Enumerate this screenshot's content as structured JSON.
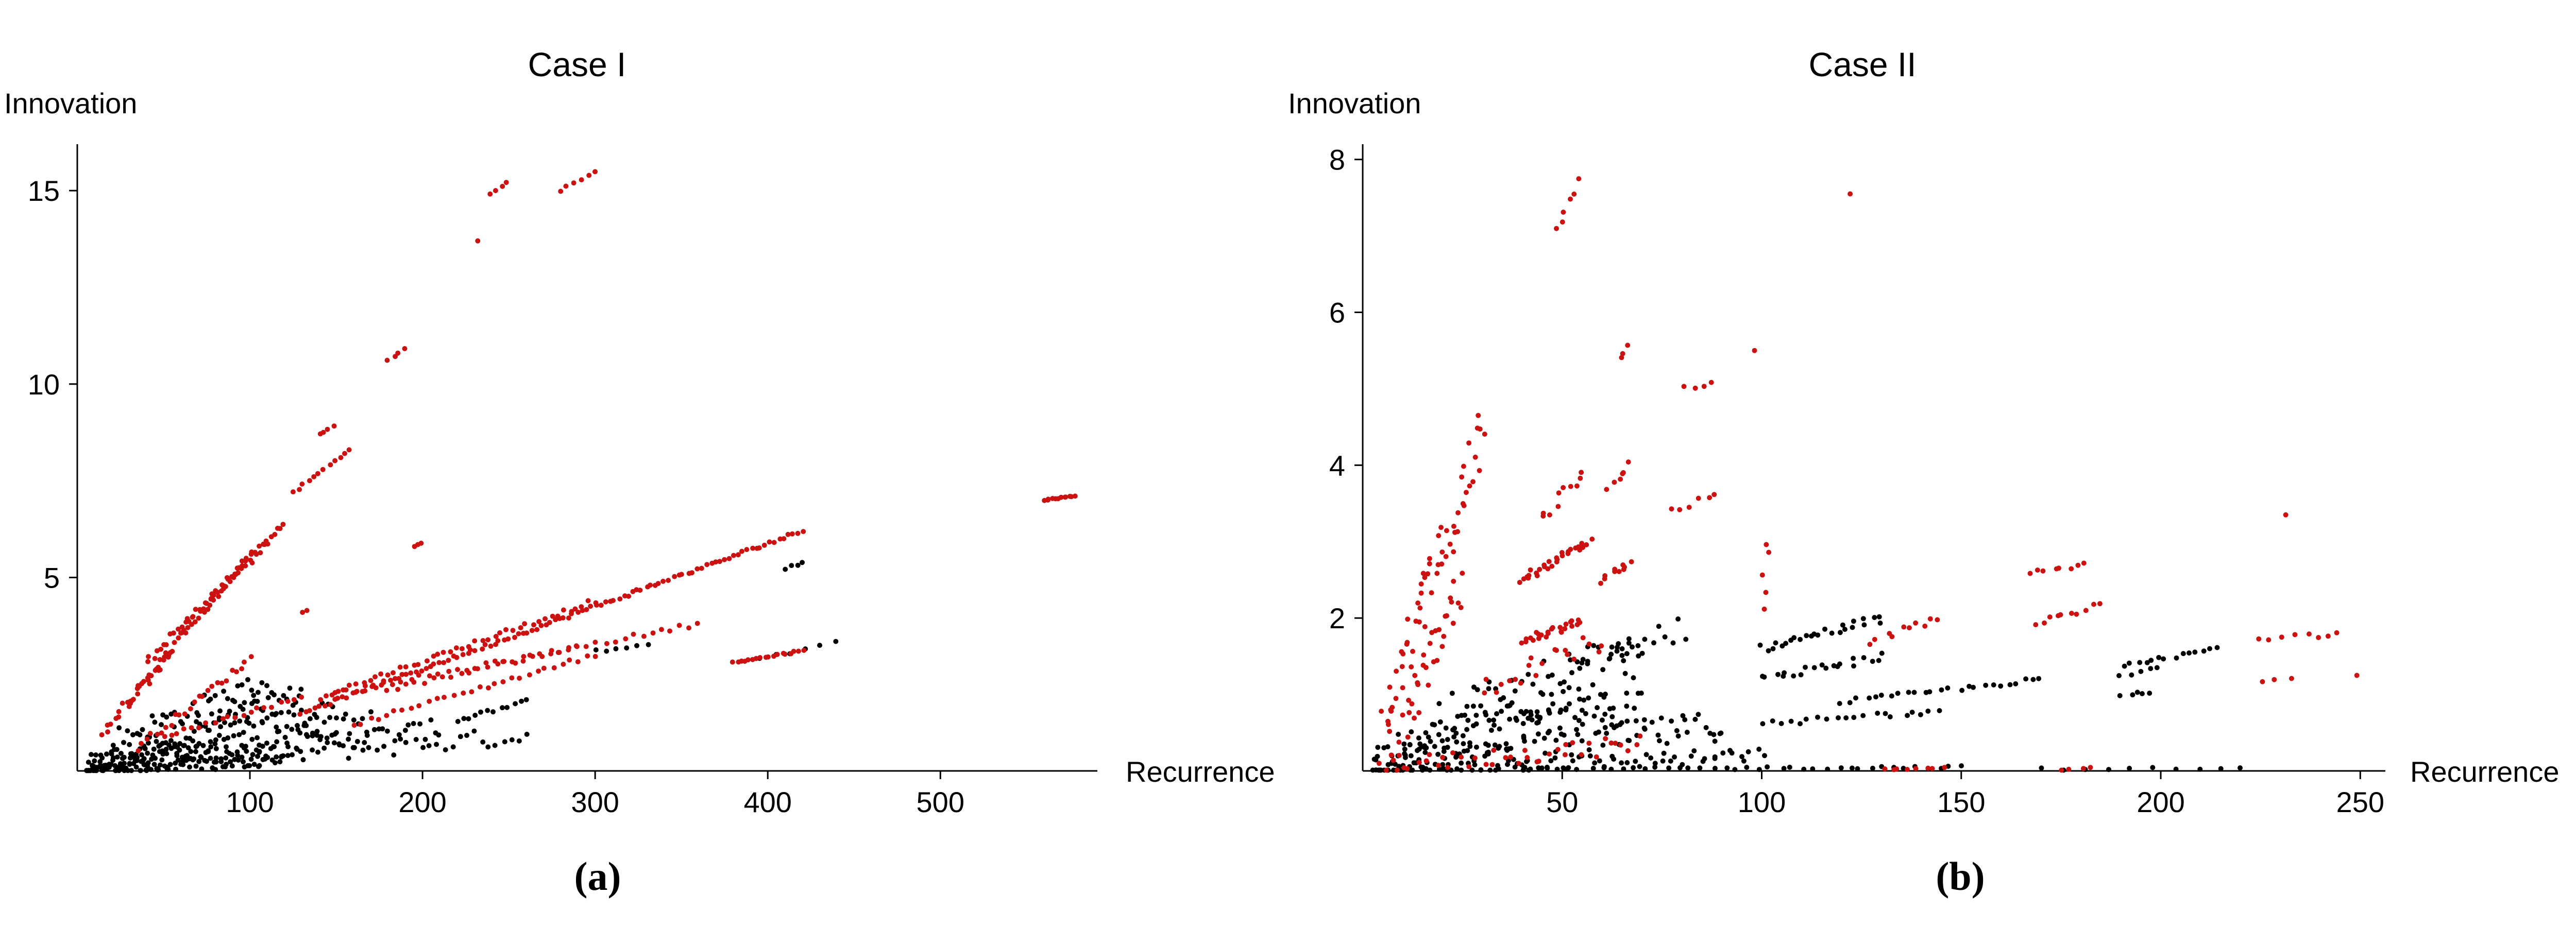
{
  "chart_data": [
    {
      "type": "scatter",
      "panel_label": "(a)",
      "title": "Case I",
      "xlabel": "Recurrence",
      "ylabel": "Innovation",
      "xlim": [
        0,
        582
      ],
      "ylim": [
        0,
        16.2
      ],
      "xticks": [
        100,
        200,
        300,
        400,
        500
      ],
      "yticks": [
        5,
        10,
        15
      ],
      "grid": false,
      "series": [
        {
          "color": "#000000",
          "streaks": [
            {
              "x0": 6,
              "y0": 0.1,
              "x1": 130,
              "y1": 2.0,
              "n": 70,
              "w": 0.3
            },
            {
              "x0": 6,
              "y0": 0.05,
              "x1": 150,
              "y1": 1.6,
              "n": 70,
              "w": 0.3
            },
            {
              "x0": 6,
              "y0": 0.05,
              "x1": 170,
              "y1": 1.3,
              "n": 70,
              "w": 0.3
            },
            {
              "x0": 6,
              "y0": 0.04,
              "x1": 210,
              "y1": 1.1,
              "n": 70,
              "w": 0.25
            },
            {
              "x0": 6,
              "y0": 0.03,
              "x1": 260,
              "y1": 0.9,
              "n": 60,
              "w": 0.25
            },
            {
              "x0": 6,
              "y0": 0.02,
              "x1": 120,
              "y1": 0.3,
              "n": 60,
              "w": 0.15
            },
            {
              "x0": 20,
              "y0": 0.8,
              "x1": 110,
              "y1": 2.3,
              "n": 40,
              "w": 0.3
            },
            {
              "x0": 220,
              "y0": 1.3,
              "x1": 260,
              "y1": 1.8,
              "n": 12,
              "w": 0.05
            },
            {
              "x0": 300,
              "y0": 3.1,
              "x1": 330,
              "y1": 3.3,
              "n": 6,
              "w": 0.05
            },
            {
              "x0": 410,
              "y0": 5.2,
              "x1": 420,
              "y1": 5.4,
              "n": 4,
              "w": 0.05
            },
            {
              "x0": 395,
              "y0": 2.9,
              "x1": 440,
              "y1": 3.3,
              "n": 6,
              "w": 0.05
            }
          ]
        },
        {
          "color": "#cc1111",
          "streaks": [
            {
              "x0": 40,
              "y0": 2.8,
              "x1": 120,
              "y1": 6.4,
              "n": 40,
              "w": 0.1
            },
            {
              "x0": 30,
              "y0": 1.8,
              "x1": 100,
              "y1": 5.6,
              "n": 35,
              "w": 0.1
            },
            {
              "x0": 60,
              "y0": 3.6,
              "x1": 110,
              "y1": 5.9,
              "n": 22,
              "w": 0.1
            },
            {
              "x0": 15,
              "y0": 1.0,
              "x1": 55,
              "y1": 3.1,
              "n": 25,
              "w": 0.15
            },
            {
              "x0": 35,
              "y0": 0.6,
              "x1": 100,
              "y1": 2.9,
              "n": 25,
              "w": 0.1
            },
            {
              "x0": 50,
              "y0": 0.9,
              "x1": 130,
              "y1": 1.9,
              "n": 20,
              "w": 0.05
            },
            {
              "x0": 130,
              "y0": 1.5,
              "x1": 420,
              "y1": 6.2,
              "n": 110,
              "w": 0.05
            },
            {
              "x0": 140,
              "y0": 1.9,
              "x1": 300,
              "y1": 4.4,
              "n": 45,
              "w": 0.06
            },
            {
              "x0": 150,
              "y0": 2.0,
              "x1": 360,
              "y1": 3.8,
              "n": 40,
              "w": 0.06
            },
            {
              "x0": 160,
              "y0": 1.2,
              "x1": 300,
              "y1": 3.0,
              "n": 30,
              "w": 0.06
            },
            {
              "x0": 180,
              "y0": 2.1,
              "x1": 290,
              "y1": 3.2,
              "n": 22,
              "w": 0.05
            },
            {
              "x0": 380,
              "y0": 2.8,
              "x1": 420,
              "y1": 3.1,
              "n": 18,
              "w": 0.03
            },
            {
              "x0": 560,
              "y0": 7.0,
              "x1": 578,
              "y1": 7.1,
              "n": 12,
              "w": 0.02
            },
            {
              "x0": 125,
              "y0": 7.2,
              "x1": 158,
              "y1": 8.3,
              "n": 12,
              "w": 0.03
            },
            {
              "x0": 140,
              "y0": 8.7,
              "x1": 148,
              "y1": 8.9,
              "n": 4,
              "w": 0.02
            },
            {
              "x0": 180,
              "y0": 10.6,
              "x1": 190,
              "y1": 10.9,
              "n": 4,
              "w": 0.02
            },
            {
              "x0": 240,
              "y0": 14.9,
              "x1": 248,
              "y1": 15.2,
              "n": 4,
              "w": 0.02
            },
            {
              "x0": 280,
              "y0": 15.0,
              "x1": 300,
              "y1": 15.5,
              "n": 6,
              "w": 0.02
            },
            {
              "x0": 195,
              "y0": 5.8,
              "x1": 200,
              "y1": 5.9,
              "n": 3,
              "w": 0.02
            },
            {
              "x0": 130,
              "y0": 4.1,
              "x1": 133,
              "y1": 4.15,
              "n": 2,
              "w": 0.02
            },
            {
              "x0": 232,
              "y0": 13.7,
              "x1": 232,
              "y1": 13.7,
              "n": 1,
              "w": 0.0
            }
          ]
        }
      ]
    },
    {
      "type": "scatter",
      "panel_label": "(b)",
      "title": "Case II",
      "xlabel": "Recurrence",
      "ylabel": "Innovation",
      "xlim": [
        0,
        255
      ],
      "ylim": [
        0,
        8.2
      ],
      "xticks": [
        50,
        100,
        150,
        200,
        250
      ],
      "yticks": [
        2,
        4,
        6,
        8
      ],
      "grid": false,
      "series": [
        {
          "color": "#000000",
          "streaks": [
            {
              "x0": 3,
              "y0": 0.05,
              "x1": 70,
              "y1": 1.5,
              "n": 90,
              "w": 0.3
            },
            {
              "x0": 3,
              "y0": 0.05,
              "x1": 70,
              "y1": 0.9,
              "n": 90,
              "w": 0.25
            },
            {
              "x0": 3,
              "y0": 0.02,
              "x1": 90,
              "y1": 0.6,
              "n": 90,
              "w": 0.2
            },
            {
              "x0": 3,
              "y0": 0.01,
              "x1": 100,
              "y1": 0.2,
              "n": 70,
              "w": 0.1
            },
            {
              "x0": 20,
              "y0": 0.8,
              "x1": 80,
              "y1": 1.9,
              "n": 40,
              "w": 0.2
            },
            {
              "x0": 100,
              "y0": 1.6,
              "x1": 130,
              "y1": 2.0,
              "n": 25,
              "w": 0.05
            },
            {
              "x0": 100,
              "y0": 1.2,
              "x1": 130,
              "y1": 1.5,
              "n": 20,
              "w": 0.05
            },
            {
              "x0": 120,
              "y0": 0.9,
              "x1": 170,
              "y1": 1.2,
              "n": 25,
              "w": 0.03
            },
            {
              "x0": 100,
              "y0": 0.6,
              "x1": 145,
              "y1": 0.8,
              "n": 20,
              "w": 0.05
            },
            {
              "x0": 190,
              "y0": 1.4,
              "x1": 215,
              "y1": 1.6,
              "n": 14,
              "w": 0.03
            },
            {
              "x0": 190,
              "y0": 1.25,
              "x1": 200,
              "y1": 1.35,
              "n": 5,
              "w": 0.02
            },
            {
              "x0": 190,
              "y0": 1.0,
              "x1": 198,
              "y1": 1.02,
              "n": 5,
              "w": 0.02
            },
            {
              "x0": 40,
              "y0": 0.02,
              "x1": 150,
              "y1": 0.05,
              "n": 40,
              "w": 0.02
            },
            {
              "x0": 170,
              "y0": 0.02,
              "x1": 220,
              "y1": 0.03,
              "n": 10,
              "w": 0.02
            }
          ]
        },
        {
          "color": "#cc1111",
          "streaks": [
            {
              "x0": 5,
              "y0": 0.6,
              "x1": 30,
              "y1": 4.4,
              "n": 60,
              "w": 0.35
            },
            {
              "x0": 8,
              "y0": 0.3,
              "x1": 25,
              "y1": 2.4,
              "n": 35,
              "w": 0.3
            },
            {
              "x0": 40,
              "y0": 2.5,
              "x1": 57,
              "y1": 3.0,
              "n": 30,
              "w": 0.05
            },
            {
              "x0": 40,
              "y0": 1.7,
              "x1": 55,
              "y1": 1.95,
              "n": 25,
              "w": 0.05
            },
            {
              "x0": 60,
              "y0": 2.5,
              "x1": 67,
              "y1": 2.7,
              "n": 10,
              "w": 0.05
            },
            {
              "x0": 62,
              "y0": 3.7,
              "x1": 67,
              "y1": 4.0,
              "n": 6,
              "w": 0.05
            },
            {
              "x0": 45,
              "y0": 3.3,
              "x1": 55,
              "y1": 3.9,
              "n": 10,
              "w": 0.1
            },
            {
              "x0": 30,
              "y0": 1.1,
              "x1": 60,
              "y1": 1.7,
              "n": 20,
              "w": 0.15
            },
            {
              "x0": 78,
              "y0": 3.4,
              "x1": 88,
              "y1": 3.6,
              "n": 6,
              "w": 0.05
            },
            {
              "x0": 80,
              "y0": 5.0,
              "x1": 88,
              "y1": 5.1,
              "n": 4,
              "w": 0.05
            },
            {
              "x0": 48,
              "y0": 7.1,
              "x1": 54,
              "y1": 7.7,
              "n": 6,
              "w": 0.05
            },
            {
              "x0": 64,
              "y0": 5.4,
              "x1": 66,
              "y1": 5.55,
              "n": 3,
              "w": 0.02
            },
            {
              "x0": 99,
              "y0": 5.5,
              "x1": 99,
              "y1": 5.5,
              "n": 1,
              "w": 0.0
            },
            {
              "x0": 122,
              "y0": 7.55,
              "x1": 122,
              "y1": 7.55,
              "n": 1,
              "w": 0.0
            },
            {
              "x0": 127,
              "y0": 1.7,
              "x1": 145,
              "y1": 2.0,
              "n": 10,
              "w": 0.05
            },
            {
              "x0": 168,
              "y0": 2.6,
              "x1": 180,
              "y1": 2.7,
              "n": 8,
              "w": 0.03
            },
            {
              "x0": 168,
              "y0": 1.9,
              "x1": 185,
              "y1": 2.2,
              "n": 10,
              "w": 0.05
            },
            {
              "x0": 225,
              "y0": 1.7,
              "x1": 245,
              "y1": 1.8,
              "n": 8,
              "w": 0.04
            },
            {
              "x0": 226,
              "y0": 1.15,
              "x1": 232,
              "y1": 1.2,
              "n": 3,
              "w": 0.02
            },
            {
              "x0": 231,
              "y0": 3.35,
              "x1": 231,
              "y1": 3.35,
              "n": 1,
              "w": 0.0
            },
            {
              "x0": 250,
              "y0": 1.25,
              "x1": 250,
              "y1": 1.25,
              "n": 1,
              "w": 0.0
            },
            {
              "x0": 5,
              "y0": 0.05,
              "x1": 70,
              "y1": 0.35,
              "n": 40,
              "w": 0.12
            },
            {
              "x0": 100,
              "y0": 2.2,
              "x1": 102,
              "y1": 3.0,
              "n": 5,
              "w": 0.1
            },
            {
              "x0": 130,
              "y0": 0.02,
              "x1": 145,
              "y1": 0.04,
              "n": 8,
              "w": 0.01
            },
            {
              "x0": 175,
              "y0": 0.02,
              "x1": 182,
              "y1": 0.05,
              "n": 4,
              "w": 0.02
            }
          ]
        }
      ]
    }
  ]
}
